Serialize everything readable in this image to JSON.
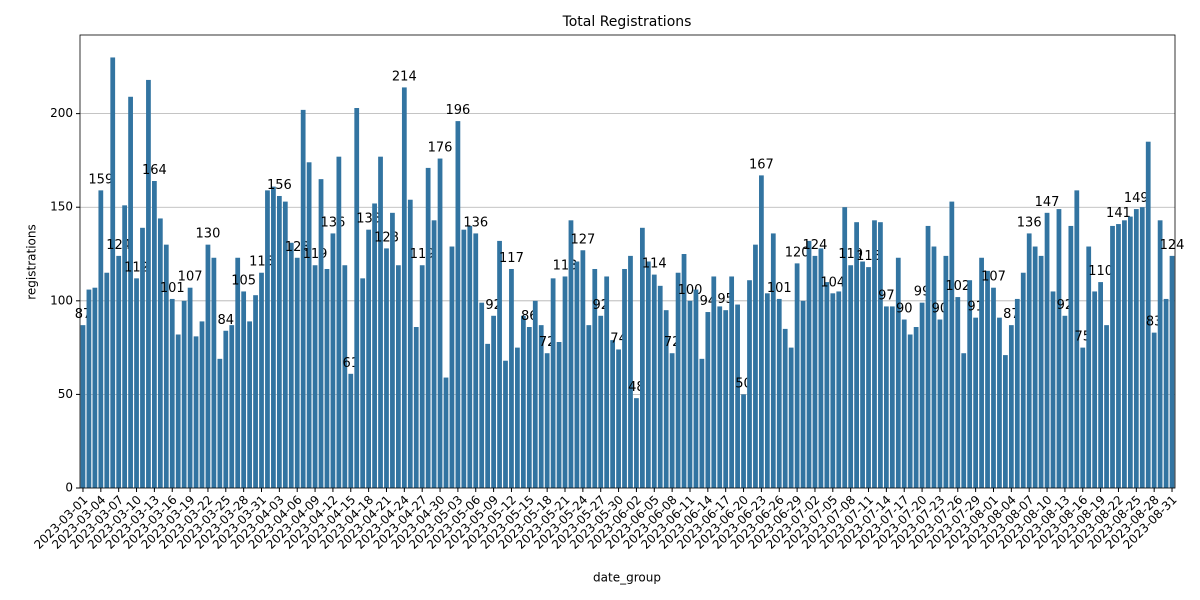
{
  "chart_data": {
    "type": "bar",
    "title": "Total Registrations",
    "x_label": "date_group",
    "y_label": "registrations",
    "color": "#3274a1",
    "grid": true,
    "ylim": [
      0,
      242
    ],
    "yticks": [
      0,
      50,
      100,
      150,
      200
    ],
    "categories": [
      "2023-03-01",
      null,
      null,
      "2023-03-04",
      null,
      null,
      "2023-03-07",
      null,
      null,
      "2023-03-10",
      null,
      null,
      "2023-03-13",
      null,
      null,
      "2023-03-16",
      null,
      null,
      "2023-03-19",
      null,
      null,
      "2023-03-22",
      null,
      null,
      "2023-03-25",
      null,
      null,
      "2023-03-28",
      null,
      null,
      "2023-03-31",
      null,
      null,
      "2023-04-03",
      null,
      null,
      "2023-04-06",
      null,
      null,
      "2023-04-09",
      null,
      null,
      "2023-04-12",
      null,
      null,
      "2023-04-15",
      null,
      null,
      "2023-04-18",
      null,
      null,
      "2023-04-21",
      null,
      null,
      "2023-04-24",
      null,
      null,
      "2023-04-27",
      null,
      null,
      "2023-04-30",
      null,
      null,
      "2023-05-03",
      null,
      null,
      "2023-05-06",
      null,
      null,
      "2023-05-09",
      null,
      null,
      "2023-05-12",
      null,
      null,
      "2023-05-15",
      null,
      null,
      "2023-05-18",
      null,
      null,
      "2023-05-21",
      null,
      null,
      "2023-05-24",
      null,
      null,
      "2023-05-27",
      null,
      null,
      "2023-05-30",
      null,
      null,
      "2023-06-02",
      null,
      null,
      "2023-06-05",
      null,
      null,
      "2023-06-08",
      null,
      null,
      "2023-06-11",
      null,
      null,
      "2023-06-14",
      null,
      null,
      "2023-06-17",
      null,
      null,
      "2023-06-20",
      null,
      null,
      "2023-06-23",
      null,
      null,
      "2023-06-26",
      null,
      null,
      "2023-06-29",
      null,
      null,
      "2023-07-02",
      null,
      null,
      "2023-07-05",
      null,
      null,
      "2023-07-08",
      null,
      null,
      "2023-07-11",
      null,
      null,
      "2023-07-14",
      null,
      null,
      "2023-07-17",
      null,
      null,
      "2023-07-20",
      null,
      null,
      "2023-07-23",
      null,
      null,
      "2023-07-26",
      null,
      null,
      "2023-07-29",
      null,
      null,
      "2023-08-01",
      null,
      null,
      "2023-08-04",
      null,
      null,
      "2023-08-07",
      null,
      null,
      "2023-08-10",
      null,
      null,
      "2023-08-13",
      null,
      null,
      "2023-08-16",
      null,
      null,
      "2023-08-19",
      null,
      null,
      "2023-08-22",
      null,
      null,
      "2023-08-25",
      null,
      null,
      "2023-08-28",
      null,
      null,
      "2023-08-31"
    ],
    "values": [
      87,
      106,
      107,
      159,
      115,
      230,
      124,
      151,
      209,
      112,
      139,
      218,
      164,
      144,
      130,
      101,
      82,
      100,
      107,
      81,
      89,
      130,
      123,
      69,
      84,
      87,
      123,
      105,
      89,
      103,
      115,
      159,
      161,
      156,
      153,
      131,
      123,
      202,
      174,
      119,
      165,
      117,
      136,
      177,
      119,
      61,
      203,
      112,
      138,
      152,
      177,
      128,
      147,
      119,
      214,
      154,
      86,
      119,
      171,
      143,
      176,
      59,
      129,
      196,
      138,
      140,
      136,
      99,
      77,
      92,
      132,
      68,
      117,
      75,
      92,
      86,
      100,
      87,
      72,
      112,
      78,
      113,
      143,
      121,
      127,
      87,
      117,
      92,
      113,
      79,
      74,
      117,
      124,
      48,
      139,
      121,
      114,
      108,
      95,
      72,
      115,
      125,
      100,
      106,
      69,
      94,
      113,
      97,
      95,
      113,
      98,
      50,
      111,
      130,
      167,
      104,
      136,
      101,
      85,
      75,
      120,
      100,
      132,
      124,
      128,
      110,
      104,
      105,
      150,
      119,
      142,
      121,
      118,
      143,
      142,
      97,
      97,
      123,
      90,
      82,
      86,
      99,
      140,
      129,
      90,
      124,
      153,
      102,
      72,
      111,
      91,
      123,
      116,
      107,
      91,
      71,
      87,
      101,
      115,
      136,
      129,
      124,
      147,
      105,
      149,
      92,
      140,
      159,
      75,
      129,
      105,
      110,
      87,
      140,
      141,
      143,
      145,
      149,
      150,
      185,
      83,
      143,
      101,
      124
    ],
    "value_labels": [
      "87",
      null,
      null,
      "159",
      null,
      null,
      "124",
      null,
      null,
      "112",
      null,
      null,
      "164",
      null,
      null,
      "101",
      null,
      null,
      "107",
      null,
      null,
      "130",
      null,
      null,
      "84",
      null,
      null,
      "105",
      null,
      null,
      "115",
      null,
      null,
      "156",
      null,
      null,
      "123",
      null,
      null,
      "119",
      null,
      null,
      "136",
      null,
      null,
      "61",
      null,
      null,
      "138",
      null,
      null,
      "128",
      null,
      null,
      "214",
      null,
      null,
      "119",
      null,
      null,
      "176",
      null,
      null,
      "196",
      null,
      null,
      "136",
      null,
      null,
      "92",
      null,
      null,
      "117",
      null,
      null,
      "86",
      null,
      null,
      "72",
      null,
      null,
      "113",
      null,
      null,
      "127",
      null,
      null,
      "92",
      null,
      null,
      "74",
      null,
      null,
      "48",
      null,
      null,
      "114",
      null,
      null,
      "72",
      null,
      null,
      "100",
      null,
      null,
      "94",
      null,
      null,
      "95",
      null,
      null,
      "50",
      null,
      null,
      "167",
      null,
      null,
      "101",
      null,
      null,
      "120",
      null,
      null,
      "124",
      null,
      null,
      "104",
      null,
      null,
      "119",
      null,
      null,
      "118",
      null,
      null,
      "97",
      null,
      null,
      "90",
      null,
      null,
      "99",
      null,
      null,
      "90",
      null,
      null,
      "102",
      null,
      null,
      "91",
      null,
      null,
      "107",
      null,
      null,
      "87",
      null,
      null,
      "136",
      null,
      null,
      "147",
      null,
      null,
      "92",
      null,
      null,
      "75",
      null,
      null,
      "110",
      null,
      null,
      "141",
      null,
      null,
      "149",
      null,
      null,
      "83",
      null,
      null,
      "124"
    ]
  }
}
